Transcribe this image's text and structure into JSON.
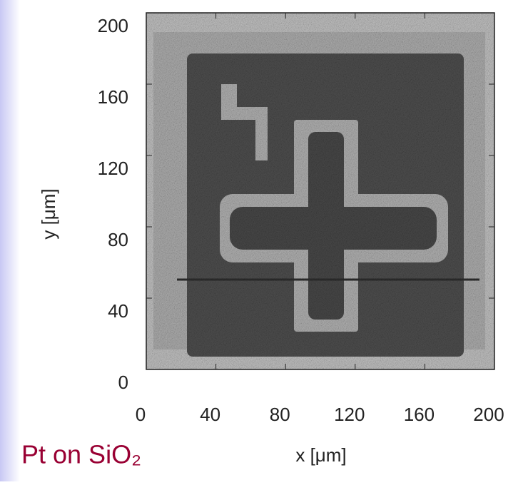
{
  "chart_data": {
    "type": "image",
    "caption": "Pt on SiO₂",
    "xlabel": "x [μm]",
    "ylabel": "y [μm]",
    "xlim": [
      0,
      200
    ],
    "ylim": [
      0,
      200
    ],
    "xticks": [
      0,
      40,
      80,
      120,
      160,
      200
    ],
    "yticks": [
      0,
      40,
      80,
      120,
      160,
      200
    ]
  }
}
